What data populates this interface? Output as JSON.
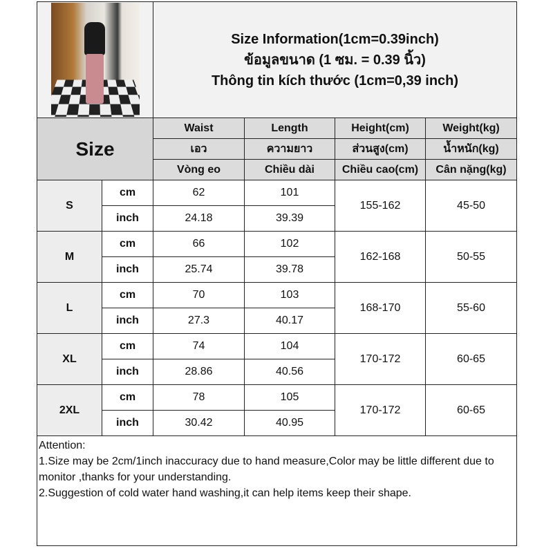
{
  "title_lines": [
    "Size Information(1cm=0.39inch)",
    "ข้อมูลขนาด (1 ซม. = 0.39 นิ้ว)",
    "Thông tin kích thước (1cm=0,39 inch)"
  ],
  "size_header": "Size",
  "columns": [
    {
      "en": "Waist",
      "th": "เอว",
      "vi": "Vòng eo"
    },
    {
      "en": "Length",
      "th": "ความยาว",
      "vi": "Chiều dài"
    },
    {
      "en": "Height(cm)",
      "th": "ส่วนสูง(cm)",
      "vi": "Chiều cao(cm)"
    },
    {
      "en": "Weight(kg)",
      "th": "น้ำหนัก(kg)",
      "vi": "Cân nặng(kg)"
    }
  ],
  "units": {
    "cm": "cm",
    "inch": "inch"
  },
  "rows": [
    {
      "size": "S",
      "waist_cm": "62",
      "length_cm": "101",
      "waist_inch": "24.18",
      "length_inch": "39.39",
      "height": "155-162",
      "weight": "45-50"
    },
    {
      "size": "M",
      "waist_cm": "66",
      "length_cm": "102",
      "waist_inch": "25.74",
      "length_inch": "39.78",
      "height": "162-168",
      "weight": "50-55"
    },
    {
      "size": "L",
      "waist_cm": "70",
      "length_cm": "103",
      "waist_inch": "27.3",
      "length_inch": "40.17",
      "height": "168-170",
      "weight": "55-60"
    },
    {
      "size": "XL",
      "waist_cm": "74",
      "length_cm": "104",
      "waist_inch": "28.86",
      "length_inch": "40.56",
      "height": "170-172",
      "weight": "60-65"
    },
    {
      "size": "2XL",
      "waist_cm": "78",
      "length_cm": "105",
      "waist_inch": "30.42",
      "length_inch": "40.95",
      "height": "170-172",
      "weight": "60-65"
    }
  ],
  "attention": {
    "heading": "Attention:",
    "line1": "1.Size may be 2cm/1inch inaccuracy due to hand measure,Color may be little different due to monitor ,thanks for your understanding.",
    "line2": "2.Suggestion of cold water hand washing,it can help items keep their shape."
  }
}
